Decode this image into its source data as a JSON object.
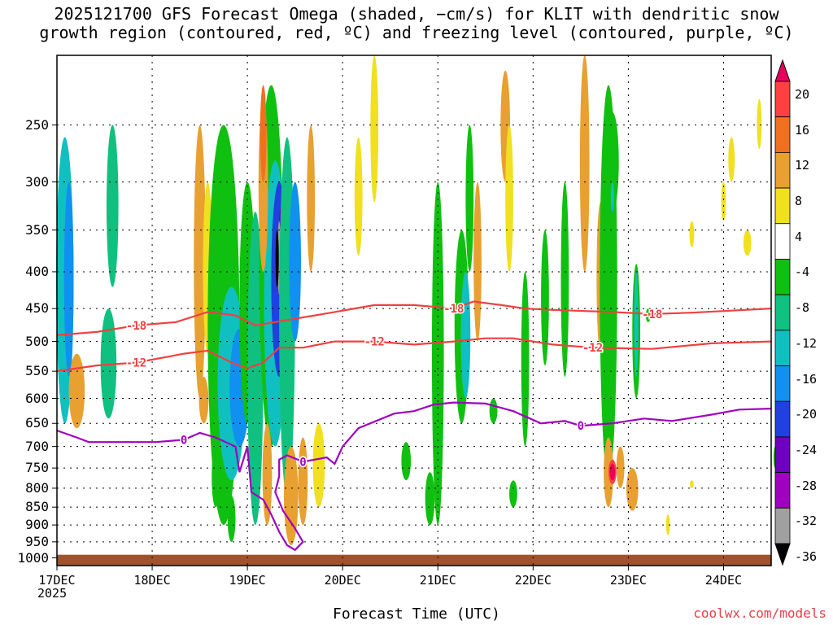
{
  "title": "2025121700 GFS Forecast Omega (shaded, −cm/s) for KLIT with dendritic snow\ngrowth region (contoured, red, ºC) and freezing level (contoured, purple, ºC)",
  "xlabel": "Forecast Time (UTC)",
  "year": "2025",
  "credit": "coolwx.com/models",
  "chart_data": {
    "type": "heatmap",
    "x_ticks": [
      "17DEC",
      "18DEC",
      "19DEC",
      "20DEC",
      "21DEC",
      "22DEC",
      "23DEC",
      "24DEC"
    ],
    "x_range_hours": [
      0,
      180
    ],
    "y_axis": "Pressure (hPa), log scale, inverted",
    "y_ticks": [
      250,
      300,
      350,
      400,
      450,
      500,
      550,
      600,
      650,
      700,
      750,
      800,
      850,
      900,
      950,
      1000
    ],
    "ylim": [
      200,
      1025
    ],
    "colorbar": {
      "labels": [
        "20",
        "16",
        "12",
        "8",
        "4",
        "-4",
        "-8",
        "-12",
        "-16",
        "-20",
        "-24",
        "-28",
        "-32",
        "-36"
      ],
      "colors": [
        "#e8005c",
        "#ff4040",
        "#f07020",
        "#e8a030",
        "#f0e020",
        "#ffffff",
        "#10c010",
        "#10c080",
        "#10c0c0",
        "#1090f0",
        "#2040e0",
        "#7000c0",
        "#a000c0",
        "#a0a0a0",
        "#000000"
      ]
    },
    "contours": [
      {
        "name": "dendritic -18C",
        "color": "#f04040",
        "label": "-18",
        "points": [
          [
            0,
            490
          ],
          [
            10,
            485
          ],
          [
            20,
            475
          ],
          [
            30,
            470
          ],
          [
            38,
            455
          ],
          [
            45,
            460
          ],
          [
            50,
            475
          ],
          [
            55,
            470
          ],
          [
            60,
            465
          ],
          [
            70,
            455
          ],
          [
            80,
            445
          ],
          [
            90,
            445
          ],
          [
            100,
            450
          ],
          [
            105,
            440
          ],
          [
            112,
            445
          ],
          [
            118,
            450
          ],
          [
            125,
            452
          ],
          [
            140,
            455
          ],
          [
            150,
            458
          ],
          [
            160,
            456
          ],
          [
            170,
            453
          ],
          [
            180,
            450
          ]
        ]
      },
      {
        "name": "dendritic -12C",
        "color": "#f04040",
        "label": "-12",
        "points": [
          [
            0,
            550
          ],
          [
            10,
            540
          ],
          [
            20,
            535
          ],
          [
            28,
            525
          ],
          [
            32,
            520
          ],
          [
            38,
            515
          ],
          [
            44,
            535
          ],
          [
            48,
            545
          ],
          [
            52,
            535
          ],
          [
            56,
            510
          ],
          [
            62,
            510
          ],
          [
            70,
            500
          ],
          [
            80,
            500
          ],
          [
            90,
            505
          ],
          [
            100,
            500
          ],
          [
            108,
            495
          ],
          [
            115,
            495
          ],
          [
            125,
            505
          ],
          [
            135,
            510
          ],
          [
            150,
            512
          ],
          [
            165,
            503
          ],
          [
            180,
            500
          ]
        ]
      },
      {
        "name": "freezing level 0C",
        "color": "#a000c0",
        "label": "0",
        "points": [
          [
            0,
            665
          ],
          [
            5,
            680
          ],
          [
            8,
            690
          ],
          [
            15,
            690
          ],
          [
            25,
            690
          ],
          [
            32,
            685
          ],
          [
            36,
            670
          ],
          [
            40,
            680
          ],
          [
            45,
            700
          ],
          [
            46,
            760
          ],
          [
            48,
            700
          ],
          [
            49,
            810
          ],
          [
            52,
            830
          ],
          [
            54,
            870
          ],
          [
            56,
            920
          ],
          [
            58,
            960
          ],
          [
            60,
            975
          ],
          [
            62,
            950
          ],
          [
            60,
            910
          ],
          [
            57,
            860
          ],
          [
            55,
            810
          ],
          [
            56,
            770
          ],
          [
            56,
            730
          ],
          [
            58,
            720
          ],
          [
            62,
            735
          ],
          [
            68,
            725
          ],
          [
            70,
            740
          ],
          [
            72,
            700
          ],
          [
            76,
            660
          ],
          [
            85,
            630
          ],
          [
            90,
            625
          ],
          [
            95,
            612
          ],
          [
            100,
            608
          ],
          [
            108,
            610
          ],
          [
            115,
            625
          ],
          [
            122,
            650
          ],
          [
            128,
            645
          ],
          [
            132,
            655
          ],
          [
            140,
            650
          ],
          [
            148,
            640
          ],
          [
            155,
            645
          ],
          [
            165,
            632
          ],
          [
            172,
            622
          ],
          [
            180,
            620
          ]
        ]
      }
    ],
    "shading_note": "Omega shaded; strong upward motion (-20 to -36) near 19DEC 300-450 hPa; downward max (+20) near 22DEC 750 hPa"
  }
}
